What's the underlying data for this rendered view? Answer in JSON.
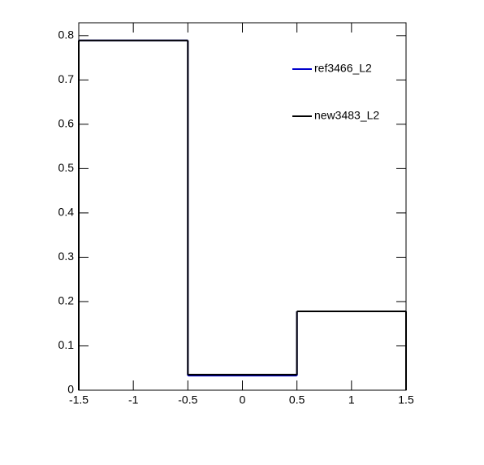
{
  "chart_data": {
    "type": "histogram",
    "bins": [
      -1.5,
      -0.5,
      0.5,
      1.5
    ],
    "series": [
      {
        "name": "ref3466_L2",
        "color": "#0000cc",
        "values": [
          0.789,
          0.033,
          0.178
        ]
      },
      {
        "name": "new3483_L2",
        "color": "#000000",
        "values": [
          0.789,
          0.035,
          0.178
        ]
      }
    ],
    "xlim": [
      -1.5,
      1.5
    ],
    "xticks": [
      -1.5,
      -1,
      -0.5,
      0,
      0.5,
      1,
      1.5
    ],
    "ylim": [
      0,
      0.829
    ],
    "yticks": [
      0,
      0.1,
      0.2,
      0.3,
      0.4,
      0.5,
      0.6,
      0.7,
      0.8
    ],
    "legend": "upper-right"
  }
}
